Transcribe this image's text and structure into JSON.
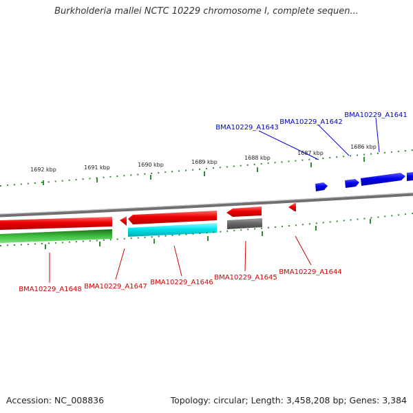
{
  "header": {
    "title": "Burkholderia mallei NCTC 10229 chromosome I, complete sequen..."
  },
  "map": {
    "ticks": [
      "1692 kbp",
      "1691 kbp",
      "1690 kbp",
      "1689 kbp",
      "1688 kbp",
      "1687 kbp",
      "1686 kbp"
    ],
    "genes_top": [
      "BMA10229_A1643",
      "BMA10229_A1642",
      "BMA10229_A1641"
    ],
    "genes_bottom": [
      "BMA10229_A1648",
      "BMA10229_A1647",
      "BMA10229_A1646",
      "BMA10229_A1645",
      "BMA10229_A1644"
    ],
    "colors": {
      "forward_gene": "#0000ee",
      "reverse_gene": "#ee0000",
      "cyan_gene": "#00e5ee",
      "gray_gene": "#666666",
      "green_track": "#2fa82f",
      "backbone": "#8a8a8a",
      "tick_color": "#2e8b2e",
      "label_red": "#cc0000",
      "label_blue": "#0000cc"
    }
  },
  "footer": {
    "accession": "Accession: NC_008836",
    "summary": "Topology: circular; Length: 3,458,208 bp; Genes: 3,384"
  }
}
